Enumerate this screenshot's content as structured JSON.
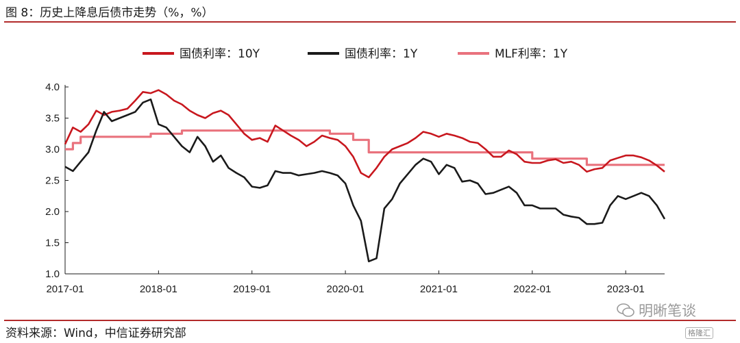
{
  "figure": {
    "title": "图 8：历史上降息后债市走势（%，%）",
    "source": "资料来源：Wind，中信证券研究部",
    "watermark": "明晰笔谈",
    "badge": "格隆汇"
  },
  "chart_data": {
    "type": "line",
    "title": "",
    "xlabel": "",
    "ylabel": "",
    "ylim": [
      1.0,
      4.0
    ],
    "yticks": [
      "1.0",
      "1.5",
      "2.0",
      "2.5",
      "3.0",
      "3.5",
      "4.0"
    ],
    "xlim": [
      "2017-01",
      "2023-06"
    ],
    "xticks": [
      "2017-01",
      "2018-01",
      "2019-01",
      "2020-01",
      "2021-01",
      "2022-01",
      "2023-01"
    ],
    "grid": false,
    "legend_position": "top",
    "series": [
      {
        "name": "国债利率：10Y",
        "color": "#c8171e",
        "x": [
          "2017-01",
          "2017-02",
          "2017-03",
          "2017-04",
          "2017-05",
          "2017-06",
          "2017-07",
          "2017-08",
          "2017-09",
          "2017-10",
          "2017-11",
          "2017-12",
          "2018-01",
          "2018-02",
          "2018-03",
          "2018-04",
          "2018-05",
          "2018-06",
          "2018-07",
          "2018-08",
          "2018-09",
          "2018-10",
          "2018-11",
          "2018-12",
          "2019-01",
          "2019-02",
          "2019-03",
          "2019-04",
          "2019-05",
          "2019-06",
          "2019-07",
          "2019-08",
          "2019-09",
          "2019-10",
          "2019-11",
          "2019-12",
          "2020-01",
          "2020-02",
          "2020-03",
          "2020-04",
          "2020-05",
          "2020-06",
          "2020-07",
          "2020-08",
          "2020-09",
          "2020-10",
          "2020-11",
          "2020-12",
          "2021-01",
          "2021-02",
          "2021-03",
          "2021-04",
          "2021-05",
          "2021-06",
          "2021-07",
          "2021-08",
          "2021-09",
          "2021-10",
          "2021-11",
          "2021-12",
          "2022-01",
          "2022-02",
          "2022-03",
          "2022-04",
          "2022-05",
          "2022-06",
          "2022-07",
          "2022-08",
          "2022-09",
          "2022-10",
          "2022-11",
          "2022-12",
          "2023-01",
          "2023-02",
          "2023-03",
          "2023-04",
          "2023-05",
          "2023-06"
        ],
        "values": [
          3.08,
          3.35,
          3.28,
          3.4,
          3.62,
          3.55,
          3.6,
          3.62,
          3.65,
          3.78,
          3.92,
          3.9,
          3.95,
          3.88,
          3.78,
          3.72,
          3.62,
          3.55,
          3.5,
          3.58,
          3.62,
          3.55,
          3.4,
          3.25,
          3.15,
          3.18,
          3.12,
          3.38,
          3.3,
          3.22,
          3.15,
          3.05,
          3.12,
          3.22,
          3.18,
          3.15,
          3.05,
          2.88,
          2.62,
          2.55,
          2.7,
          2.88,
          3.0,
          3.05,
          3.1,
          3.18,
          3.28,
          3.25,
          3.2,
          3.25,
          3.22,
          3.18,
          3.12,
          3.1,
          3.0,
          2.88,
          2.88,
          2.98,
          2.92,
          2.8,
          2.78,
          2.78,
          2.82,
          2.84,
          2.78,
          2.8,
          2.75,
          2.64,
          2.68,
          2.7,
          2.82,
          2.86,
          2.9,
          2.9,
          2.87,
          2.82,
          2.74,
          2.64
        ]
      },
      {
        "name": "国债利率：1Y",
        "color": "#1a1a1a",
        "x": [
          "2017-01",
          "2017-02",
          "2017-03",
          "2017-04",
          "2017-05",
          "2017-06",
          "2017-07",
          "2017-08",
          "2017-09",
          "2017-10",
          "2017-11",
          "2017-12",
          "2018-01",
          "2018-02",
          "2018-03",
          "2018-04",
          "2018-05",
          "2018-06",
          "2018-07",
          "2018-08",
          "2018-09",
          "2018-10",
          "2018-11",
          "2018-12",
          "2019-01",
          "2019-02",
          "2019-03",
          "2019-04",
          "2019-05",
          "2019-06",
          "2019-07",
          "2019-08",
          "2019-09",
          "2019-10",
          "2019-11",
          "2019-12",
          "2020-01",
          "2020-02",
          "2020-03",
          "2020-04",
          "2020-05",
          "2020-06",
          "2020-07",
          "2020-08",
          "2020-09",
          "2020-10",
          "2020-11",
          "2020-12",
          "2021-01",
          "2021-02",
          "2021-03",
          "2021-04",
          "2021-05",
          "2021-06",
          "2021-07",
          "2021-08",
          "2021-09",
          "2021-10",
          "2021-11",
          "2021-12",
          "2022-01",
          "2022-02",
          "2022-03",
          "2022-04",
          "2022-05",
          "2022-06",
          "2022-07",
          "2022-08",
          "2022-09",
          "2022-10",
          "2022-11",
          "2022-12",
          "2023-01",
          "2023-02",
          "2023-03",
          "2023-04",
          "2023-05",
          "2023-06"
        ],
        "values": [
          2.72,
          2.65,
          2.8,
          2.95,
          3.3,
          3.6,
          3.45,
          3.5,
          3.55,
          3.6,
          3.75,
          3.8,
          3.4,
          3.35,
          3.2,
          3.05,
          2.95,
          3.2,
          3.05,
          2.8,
          2.9,
          2.7,
          2.62,
          2.55,
          2.4,
          2.38,
          2.42,
          2.65,
          2.62,
          2.62,
          2.58,
          2.6,
          2.62,
          2.65,
          2.62,
          2.58,
          2.45,
          2.1,
          1.85,
          1.2,
          1.25,
          2.05,
          2.2,
          2.45,
          2.6,
          2.75,
          2.85,
          2.8,
          2.6,
          2.75,
          2.7,
          2.48,
          2.5,
          2.45,
          2.28,
          2.3,
          2.35,
          2.4,
          2.3,
          2.1,
          2.1,
          2.05,
          2.05,
          2.05,
          1.95,
          1.92,
          1.9,
          1.8,
          1.8,
          1.82,
          2.1,
          2.25,
          2.2,
          2.25,
          2.3,
          2.25,
          2.1,
          1.88
        ]
      },
      {
        "name": "MLF利率：1Y",
        "color": "#e9727d",
        "step": true,
        "x": [
          "2017-01",
          "2017-02",
          "2017-03",
          "2017-12",
          "2018-04",
          "2019-01",
          "2019-11",
          "2020-02",
          "2020-04",
          "2022-01",
          "2022-08",
          "2023-06"
        ],
        "values": [
          3.0,
          3.1,
          3.2,
          3.25,
          3.3,
          3.3,
          3.25,
          3.15,
          2.95,
          2.85,
          2.75,
          2.75
        ]
      }
    ]
  }
}
